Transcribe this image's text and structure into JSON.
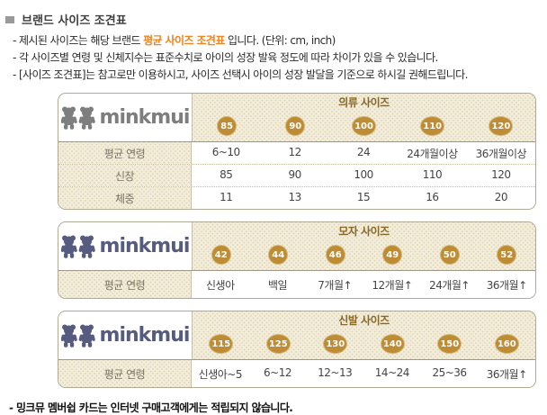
{
  "page": {
    "title": "브랜드 사이즈 조견표",
    "intro": {
      "line1_before": "- 제시된 사이즈는 해당 브랜드 ",
      "line1_highlight": "평균 사이즈 조견표",
      "line1_after": " 입니다.  (단위: cm, inch)",
      "line2": "- 각 사이즈별 연령 및 신체지수는 표준수치로 아이의 성장 발육 정도에 따라 차이가 있을 수 있습니다.",
      "line3": "- [사이즈 조견표]는 참고로만 이용하시고, 사이즈 선택시 아이의 성장 발달을 기준으로 하시길 권해드립니다."
    },
    "footer": "- 밍크뮤 멤버쉽 카드는 인터넷 구매고객에게는 적립되지 않습니다."
  },
  "brand": {
    "name": "minkmui"
  },
  "colors": {
    "accent_orange": "#F0831A",
    "table_title_brown": "#8A6826",
    "badge_gold": "#BE8C34",
    "border_tan": "#B2A992",
    "logo_gray": "#7E7E7E",
    "logo_navy": "#565B80"
  },
  "tables": [
    {
      "id": "clothing",
      "title": "의류 사이즈",
      "logo_color": "#7E7E7E",
      "sizes": [
        "85",
        "90",
        "100",
        "110",
        "120"
      ],
      "rows": [
        {
          "label": "평균 연령",
          "values": [
            "6~10",
            "12",
            "24",
            "24개월이상",
            "36개월이상"
          ]
        },
        {
          "label": "신장",
          "values": [
            "85",
            "90",
            "100",
            "110",
            "120"
          ]
        },
        {
          "label": "체중",
          "values": [
            "11",
            "13",
            "15",
            "16",
            "20"
          ]
        }
      ]
    },
    {
      "id": "hat",
      "title": "모자 사이즈",
      "logo_color": "#565B80",
      "sizes": [
        "42",
        "44",
        "46",
        "49",
        "50",
        "52"
      ],
      "rows": [
        {
          "label": "평균 연령",
          "values": [
            "신생아",
            "백일",
            "7개월↑",
            "12개월↑",
            "24개월↑",
            "36개월↑"
          ]
        }
      ]
    },
    {
      "id": "shoes",
      "title": "신발 사이즈",
      "logo_color": "#565B80",
      "sizes": [
        "115",
        "125",
        "130",
        "140",
        "150",
        "160"
      ],
      "rows": [
        {
          "label": "평균 연령",
          "values": [
            "신생아~5",
            "6~12",
            "12~13",
            "14~24",
            "25~36",
            "36개월↑"
          ]
        }
      ]
    }
  ]
}
